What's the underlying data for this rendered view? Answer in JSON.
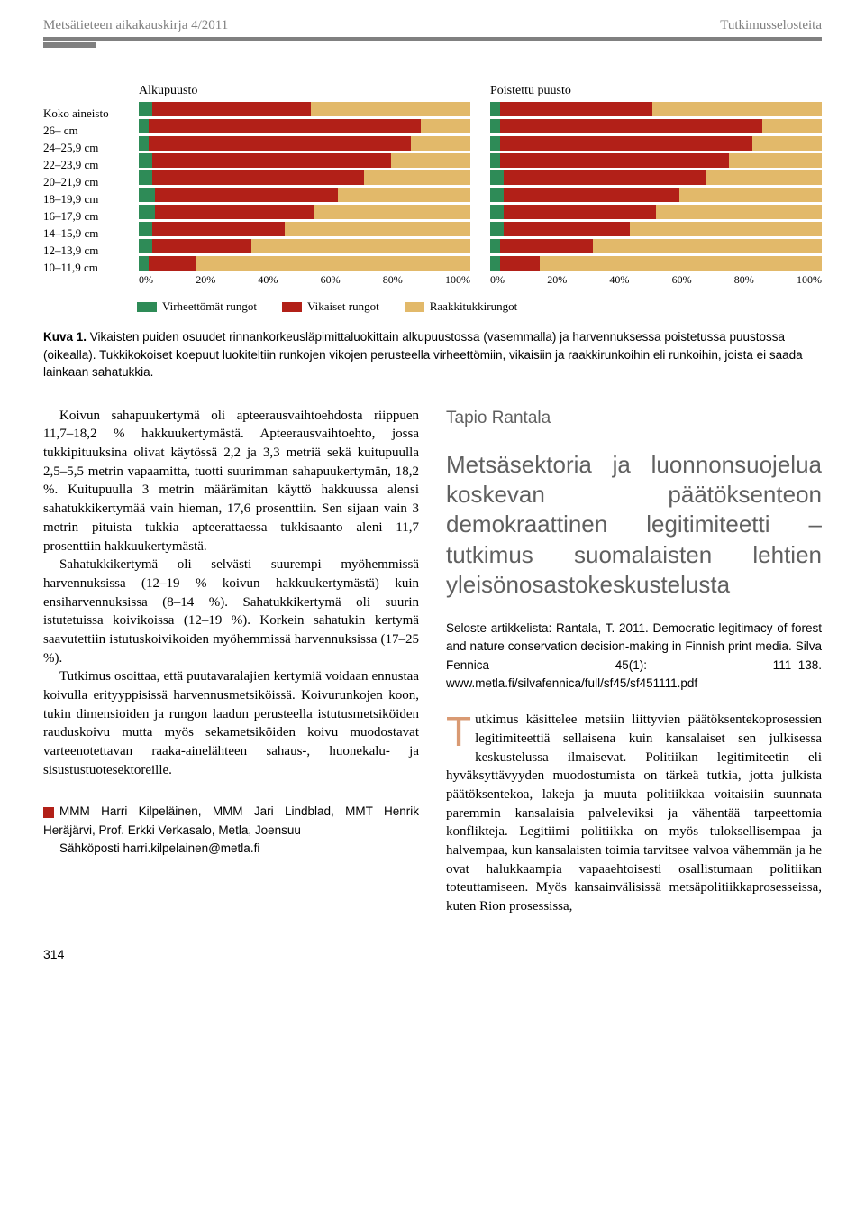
{
  "header": {
    "journal": "Metsätieteen aikakauskirja",
    "issue": "4/2011",
    "section": "Tutkimusselosteita"
  },
  "colors": {
    "green": "#2e8b57",
    "red": "#b22018",
    "tan": "#e2b96a",
    "text_gray": "#808080"
  },
  "chart": {
    "left_title": "Alkupuusto",
    "right_title": "Poistettu puusto",
    "row_labels": [
      "Koko aineisto",
      "26–  cm",
      "24–25,9 cm",
      "22–23,9 cm",
      "20–21,9 cm",
      "18–19,9 cm",
      "16–17,9 cm",
      "14–15,9 cm",
      "12–13,9 cm",
      "10–11,9 cm"
    ],
    "axis_labels": [
      "0%",
      "20%",
      "40%",
      "60%",
      "80%",
      "100%"
    ],
    "legend": [
      {
        "label": "Virheettömät rungot",
        "color": "#2e8b57"
      },
      {
        "label": "Vikaiset rungot",
        "color": "#b22018"
      },
      {
        "label": "Raakkitukkirungot",
        "color": "#e2b96a"
      }
    ],
    "left_series": [
      {
        "green": 4,
        "red": 48,
        "tan": 48
      },
      {
        "green": 3,
        "red": 82,
        "tan": 15
      },
      {
        "green": 3,
        "red": 79,
        "tan": 18
      },
      {
        "green": 4,
        "red": 72,
        "tan": 24
      },
      {
        "green": 4,
        "red": 64,
        "tan": 32
      },
      {
        "green": 5,
        "red": 55,
        "tan": 40
      },
      {
        "green": 5,
        "red": 48,
        "tan": 47
      },
      {
        "green": 4,
        "red": 40,
        "tan": 56
      },
      {
        "green": 4,
        "red": 30,
        "tan": 66
      },
      {
        "green": 3,
        "red": 14,
        "tan": 83
      }
    ],
    "right_series": [
      {
        "green": 3,
        "red": 46,
        "tan": 51
      },
      {
        "green": 3,
        "red": 79,
        "tan": 18
      },
      {
        "green": 3,
        "red": 76,
        "tan": 21
      },
      {
        "green": 3,
        "red": 69,
        "tan": 28
      },
      {
        "green": 4,
        "red": 61,
        "tan": 35
      },
      {
        "green": 4,
        "red": 53,
        "tan": 43
      },
      {
        "green": 4,
        "red": 46,
        "tan": 50
      },
      {
        "green": 4,
        "red": 38,
        "tan": 58
      },
      {
        "green": 3,
        "red": 28,
        "tan": 69
      },
      {
        "green": 3,
        "red": 12,
        "tan": 85
      }
    ]
  },
  "caption": {
    "label": "Kuva 1.",
    "text": "Vikaisten puiden osuudet rinnankorkeusläpimittaluokittain alkupuustossa (vasemmalla) ja harvennuksessa poistetussa puustossa (oikealla). Tukkikokoiset koepuut luokiteltiin runkojen vikojen perusteella virheettömiin, vikaisiin ja raakkirunkoihin eli runkoihin, joista ei saada lainkaan sahatukkia."
  },
  "leftcol": {
    "p1": "Koivun sahapuukertymä oli apteerausvaihtoehdosta riippuen 11,7–18,2 % hakkuukertymästä. Apteerausvaihtoehto, jossa tukkipituuksina olivat käytössä 2,2 ja 3,3 metriä sekä kuitupuulla 2,5–5,5 metrin vapaamitta, tuotti suurimman sahapuukertymän, 18,2 %. Kuitupuulla 3 metrin määrämitan käyttö hakkuussa alensi sahatukkikertymää vain hieman, 17,6 prosenttiin. Sen sijaan vain 3 metrin pituista tukkia apteerattaessa tukkisaanto aleni 11,7 prosenttiin hakkuukertymästä.",
    "p2": "Sahatukkikertymä oli selvästi suurempi myöhemmissä harvennuksissa (12–19 % koivun hakkuukertymästä) kuin ensiharvennuksissa (8–14 %). Sahatukkikertymä oli suurin istutetuissa koivikoissa (12–19 %). Korkein sahatukin kertymä saavutettiin istutuskoivikoiden myöhemmissä harvennuksissa (17–25 %).",
    "p3": "Tutkimus osoittaa, että puutavaralajien kertymiä voidaan ennustaa koivulla erityyppisissä harvennusmetsiköissä. Koivurunkojen koon, tukin dimensioiden ja rungon laadun perusteella istutusmetsiköiden rauduskoivu mutta myös sekametsiköiden koivu muodostavat varteenotettavan raaka-ainelähteen sahaus-, huonekalu- ja sisustustuotesektoreille.",
    "authors_line1": "MMM Harri Kilpeläinen, MMM Jari Lindblad, MMT Henrik Heräjärvi, Prof. Erkki Verkasalo, Metla, Joensuu",
    "authors_line2": "Sähköposti harri.kilpelainen@metla.fi"
  },
  "rightcol": {
    "author": "Tapio Rantala",
    "title": "Metsäsektoria ja luonnonsuojelua koskevan päätöksenteon demokraattinen legitimiteetti – tutkimus suomalaisten lehtien yleisönosastokeskustelusta",
    "ref": "Seloste artikkelista: Rantala, T. 2011. Democratic legitimacy of forest and nature conservation decision-making in Finnish print media. Silva Fennica 45(1): 111–138. www.metla.fi/silvafennica/full/sf45/sf451111.pdf",
    "body_dropcap": "T",
    "body": "utkimus käsittelee metsiin liittyvien päätöksentekoprosessien legitimiteettiä sellaisena kuin kansalaiset sen julkisessa keskustelussa ilmaisevat. Politiikan legitimiteetin eli hyväksyttävyyden muodostumista on tärkeä tutkia, jotta julkista päätöksentekoa, lakeja ja muuta politiikkaa voitaisiin suunnata paremmin kansalaisia palveleviksi ja vähentää tarpeettomia konflikteja. Legitiimi politiikka on myös tuloksellisempaa ja halvempaa, kun kansalaisten toimia tarvitsee valvoa vähemmän ja he ovat halukkaampia vapaaehtoisesti osallistumaan politiikan toteuttamiseen. Myös kansainvälisissä metsäpolitiikkaprosesseissa, kuten Rion prosessissa,"
  },
  "pageno": "314"
}
